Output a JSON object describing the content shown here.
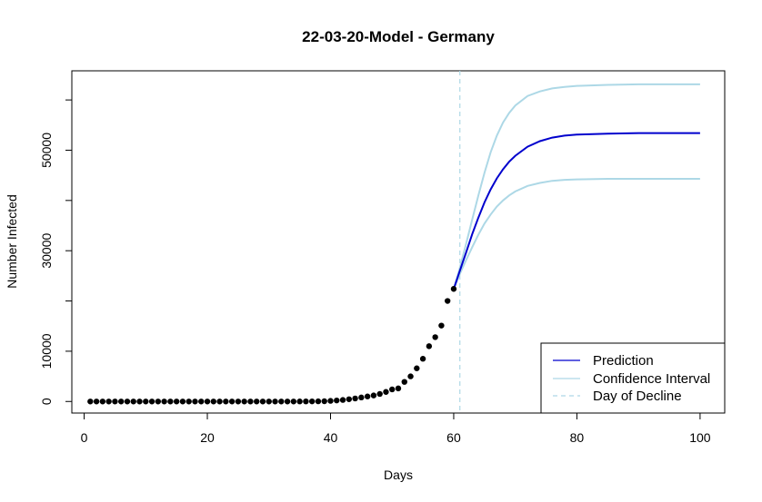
{
  "chart_data": {
    "type": "line",
    "title": "22-03-20-Model - Germany",
    "xlabel": "Days",
    "ylabel": "Number Infected",
    "xlim": [
      -2,
      104
    ],
    "ylim": [
      -2300,
      65800
    ],
    "x_ticks": [
      0,
      20,
      40,
      60,
      80,
      100
    ],
    "y_ticks": [
      0,
      10000,
      30000,
      50000
    ],
    "grid": false,
    "legend_position": "bottom-right",
    "colors": {
      "observed": "#000000",
      "prediction": "#0000cd",
      "confidence": "#add8e6",
      "decline": "#add8e6"
    },
    "legend": [
      {
        "label": "Prediction",
        "style": "solid",
        "color": "#0000cd"
      },
      {
        "label": "Confidence Interval",
        "style": "solid",
        "color": "#add8e6"
      },
      {
        "label": "Day of Decline",
        "style": "dashed",
        "color": "#add8e6"
      }
    ],
    "day_of_decline": 61,
    "observed": {
      "x": [
        1,
        2,
        3,
        4,
        5,
        6,
        7,
        8,
        9,
        10,
        11,
        12,
        13,
        14,
        15,
        16,
        17,
        18,
        19,
        20,
        21,
        22,
        23,
        24,
        25,
        26,
        27,
        28,
        29,
        30,
        31,
        32,
        33,
        34,
        35,
        36,
        37,
        38,
        39,
        40,
        41,
        42,
        43,
        44,
        45,
        46,
        47,
        48,
        49,
        50,
        51,
        52,
        53,
        54,
        55,
        56,
        57,
        58,
        59,
        60
      ],
      "y": [
        0,
        0,
        0,
        0,
        0,
        0,
        0,
        0,
        0,
        0,
        0,
        0,
        0,
        0,
        0,
        0,
        0,
        0,
        0,
        0,
        0,
        0,
        0,
        0,
        0,
        0,
        0,
        0,
        0,
        0,
        0,
        0,
        0,
        0,
        12,
        16,
        20,
        30,
        50,
        120,
        200,
        300,
        450,
        600,
        800,
        1000,
        1200,
        1500,
        1900,
        2400,
        2600,
        3900,
        5000,
        6600,
        8500,
        11000,
        12800,
        15100,
        20000,
        22400
      ]
    },
    "series": [
      {
        "name": "Prediction",
        "x": [
          60,
          61,
          62,
          63,
          64,
          65,
          66,
          67,
          68,
          69,
          70,
          72,
          74,
          76,
          78,
          80,
          85,
          90,
          95,
          100
        ],
        "y": [
          22400,
          26000,
          29600,
          33300,
          36600,
          39600,
          42200,
          44400,
          46200,
          47700,
          48900,
          50700,
          51800,
          52500,
          52900,
          53100,
          53300,
          53400,
          53400,
          53400
        ]
      },
      {
        "name": "Upper confidence bound",
        "x": [
          60,
          61,
          62,
          63,
          64,
          65,
          66,
          67,
          68,
          69,
          70,
          72,
          74,
          76,
          78,
          80,
          85,
          90,
          95,
          100
        ],
        "y": [
          22400,
          26600,
          31300,
          36200,
          41000,
          45500,
          49600,
          52900,
          55500,
          57400,
          58900,
          60800,
          61700,
          62300,
          62600,
          62800,
          63000,
          63100,
          63100,
          63100
        ]
      },
      {
        "name": "Lower confidence bound",
        "x": [
          60,
          61,
          62,
          63,
          64,
          65,
          66,
          67,
          68,
          69,
          70,
          72,
          74,
          76,
          78,
          80,
          85,
          90,
          95,
          100
        ],
        "y": [
          22400,
          25400,
          28100,
          30700,
          33200,
          35400,
          37200,
          38800,
          40000,
          41000,
          41800,
          42900,
          43500,
          43900,
          44100,
          44200,
          44300,
          44300,
          44300,
          44300
        ]
      }
    ]
  }
}
